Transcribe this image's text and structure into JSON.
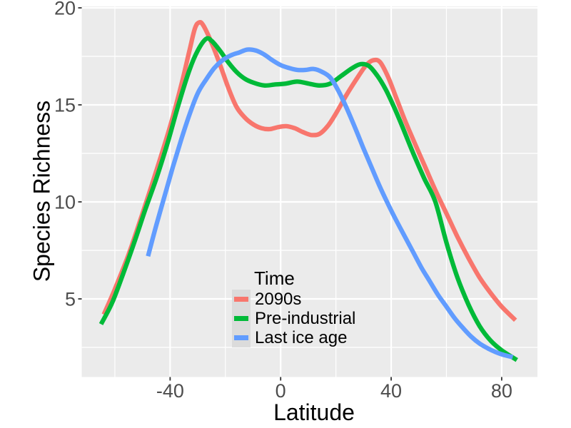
{
  "figure": {
    "background": "#FFFFFF",
    "tick_mark_color": "#333333",
    "tick_label_color": "#4D4D4D",
    "axis_title_color": "#000000"
  },
  "chart_data": {
    "type": "line",
    "title": "",
    "xlabel": "Latitude",
    "ylabel": "Species Richness",
    "xlim": [
      -72,
      93
    ],
    "ylim": [
      0.95,
      20.1
    ],
    "grid": true,
    "panel_bg": "#EBEBEB",
    "grid_color": "#FFFFFF",
    "x_ticks": {
      "values": [
        -40,
        0,
        40,
        80
      ],
      "labels": [
        "-40",
        "0",
        "40",
        "80"
      ],
      "minor": [
        -60,
        -20,
        20,
        60
      ]
    },
    "y_ticks": {
      "values": [
        5,
        10,
        15,
        20
      ],
      "labels": [
        "5",
        "10",
        "15",
        "20"
      ],
      "minor": [
        2.5,
        7.5,
        12.5,
        17.5
      ]
    },
    "legend": {
      "title": "Time",
      "position": "inside-bottom-center",
      "key_fill": "#DBDBDB",
      "entries": [
        {
          "label": "2090s",
          "color": "#F8766D"
        },
        {
          "label": "Pre-industrial",
          "color": "#00BA38"
        },
        {
          "label": "Last ice age",
          "color": "#619CFF"
        }
      ]
    },
    "series": [
      {
        "name": "2090s",
        "color": "#F8766D",
        "points": [
          [
            -64,
            4.2
          ],
          [
            -60,
            5.5
          ],
          [
            -55,
            7.3
          ],
          [
            -50,
            9.4
          ],
          [
            -45,
            11.6
          ],
          [
            -40,
            13.9
          ],
          [
            -36,
            16.0
          ],
          [
            -33,
            17.8
          ],
          [
            -31,
            18.95
          ],
          [
            -29.5,
            19.25
          ],
          [
            -28,
            19.1
          ],
          [
            -25,
            18.2
          ],
          [
            -22,
            17.1
          ],
          [
            -19,
            15.9
          ],
          [
            -16,
            14.9
          ],
          [
            -13,
            14.35
          ],
          [
            -10,
            14.0
          ],
          [
            -7,
            13.8
          ],
          [
            -4,
            13.75
          ],
          [
            -1,
            13.85
          ],
          [
            2,
            13.9
          ],
          [
            5,
            13.8
          ],
          [
            8,
            13.6
          ],
          [
            11,
            13.45
          ],
          [
            14,
            13.5
          ],
          [
            17,
            13.9
          ],
          [
            20,
            14.55
          ],
          [
            24,
            15.55
          ],
          [
            28,
            16.45
          ],
          [
            31,
            17.05
          ],
          [
            33.5,
            17.3
          ],
          [
            36,
            17.2
          ],
          [
            39,
            16.4
          ],
          [
            42,
            15.3
          ],
          [
            45,
            14.2
          ],
          [
            48,
            13.2
          ],
          [
            52,
            11.9
          ],
          [
            56,
            10.6
          ],
          [
            60,
            9.4
          ],
          [
            64,
            8.2
          ],
          [
            68,
            7.1
          ],
          [
            72,
            6.1
          ],
          [
            76,
            5.3
          ],
          [
            80,
            4.6
          ],
          [
            85,
            3.9
          ]
        ]
      },
      {
        "name": "Pre-industrial",
        "color": "#00BA38",
        "points": [
          [
            -65,
            3.7
          ],
          [
            -61,
            4.8
          ],
          [
            -57,
            6.3
          ],
          [
            -53,
            7.9
          ],
          [
            -49,
            9.6
          ],
          [
            -45,
            11.2
          ],
          [
            -41,
            13.0
          ],
          [
            -37,
            15.0
          ],
          [
            -33,
            16.8
          ],
          [
            -30,
            17.8
          ],
          [
            -27,
            18.4
          ],
          [
            -25,
            18.3
          ],
          [
            -22,
            17.8
          ],
          [
            -19,
            17.2
          ],
          [
            -16,
            16.7
          ],
          [
            -13,
            16.35
          ],
          [
            -10,
            16.15
          ],
          [
            -6,
            16.0
          ],
          [
            -2,
            16.05
          ],
          [
            2,
            16.1
          ],
          [
            6,
            16.2
          ],
          [
            10,
            16.1
          ],
          [
            14,
            16.0
          ],
          [
            18,
            16.1
          ],
          [
            22,
            16.5
          ],
          [
            26,
            16.9
          ],
          [
            29,
            17.1
          ],
          [
            32,
            17.0
          ],
          [
            35,
            16.5
          ],
          [
            38,
            15.8
          ],
          [
            41,
            14.9
          ],
          [
            44,
            13.9
          ],
          [
            48,
            12.5
          ],
          [
            52,
            11.2
          ],
          [
            56,
            10.0
          ],
          [
            60,
            7.9
          ],
          [
            64,
            6.1
          ],
          [
            68,
            4.7
          ],
          [
            72,
            3.6
          ],
          [
            76,
            2.85
          ],
          [
            80,
            2.35
          ],
          [
            85.5,
            1.85
          ]
        ]
      },
      {
        "name": "Last ice age",
        "color": "#619CFF",
        "points": [
          [
            -48,
            7.2
          ],
          [
            -45,
            8.8
          ],
          [
            -42,
            10.3
          ],
          [
            -39,
            11.8
          ],
          [
            -36,
            13.2
          ],
          [
            -33,
            14.5
          ],
          [
            -30,
            15.6
          ],
          [
            -27,
            16.3
          ],
          [
            -24,
            16.9
          ],
          [
            -21,
            17.3
          ],
          [
            -18,
            17.55
          ],
          [
            -15,
            17.7
          ],
          [
            -12,
            17.85
          ],
          [
            -9,
            17.8
          ],
          [
            -6,
            17.6
          ],
          [
            -3,
            17.3
          ],
          [
            0,
            17.05
          ],
          [
            3,
            16.9
          ],
          [
            6,
            16.8
          ],
          [
            9,
            16.8
          ],
          [
            12,
            16.85
          ],
          [
            15,
            16.7
          ],
          [
            18,
            16.4
          ],
          [
            21,
            15.7
          ],
          [
            24,
            14.8
          ],
          [
            27,
            13.8
          ],
          [
            30,
            12.75
          ],
          [
            33,
            11.75
          ],
          [
            36,
            10.75
          ],
          [
            39,
            9.85
          ],
          [
            42,
            9.0
          ],
          [
            45,
            8.2
          ],
          [
            48,
            7.4
          ],
          [
            51,
            6.6
          ],
          [
            54,
            5.9
          ],
          [
            57,
            5.2
          ],
          [
            60,
            4.6
          ],
          [
            63,
            4.0
          ],
          [
            66,
            3.5
          ],
          [
            69,
            3.05
          ],
          [
            72,
            2.7
          ],
          [
            75,
            2.45
          ],
          [
            78,
            2.25
          ],
          [
            81,
            2.1
          ],
          [
            84,
            2.0
          ]
        ]
      }
    ]
  }
}
